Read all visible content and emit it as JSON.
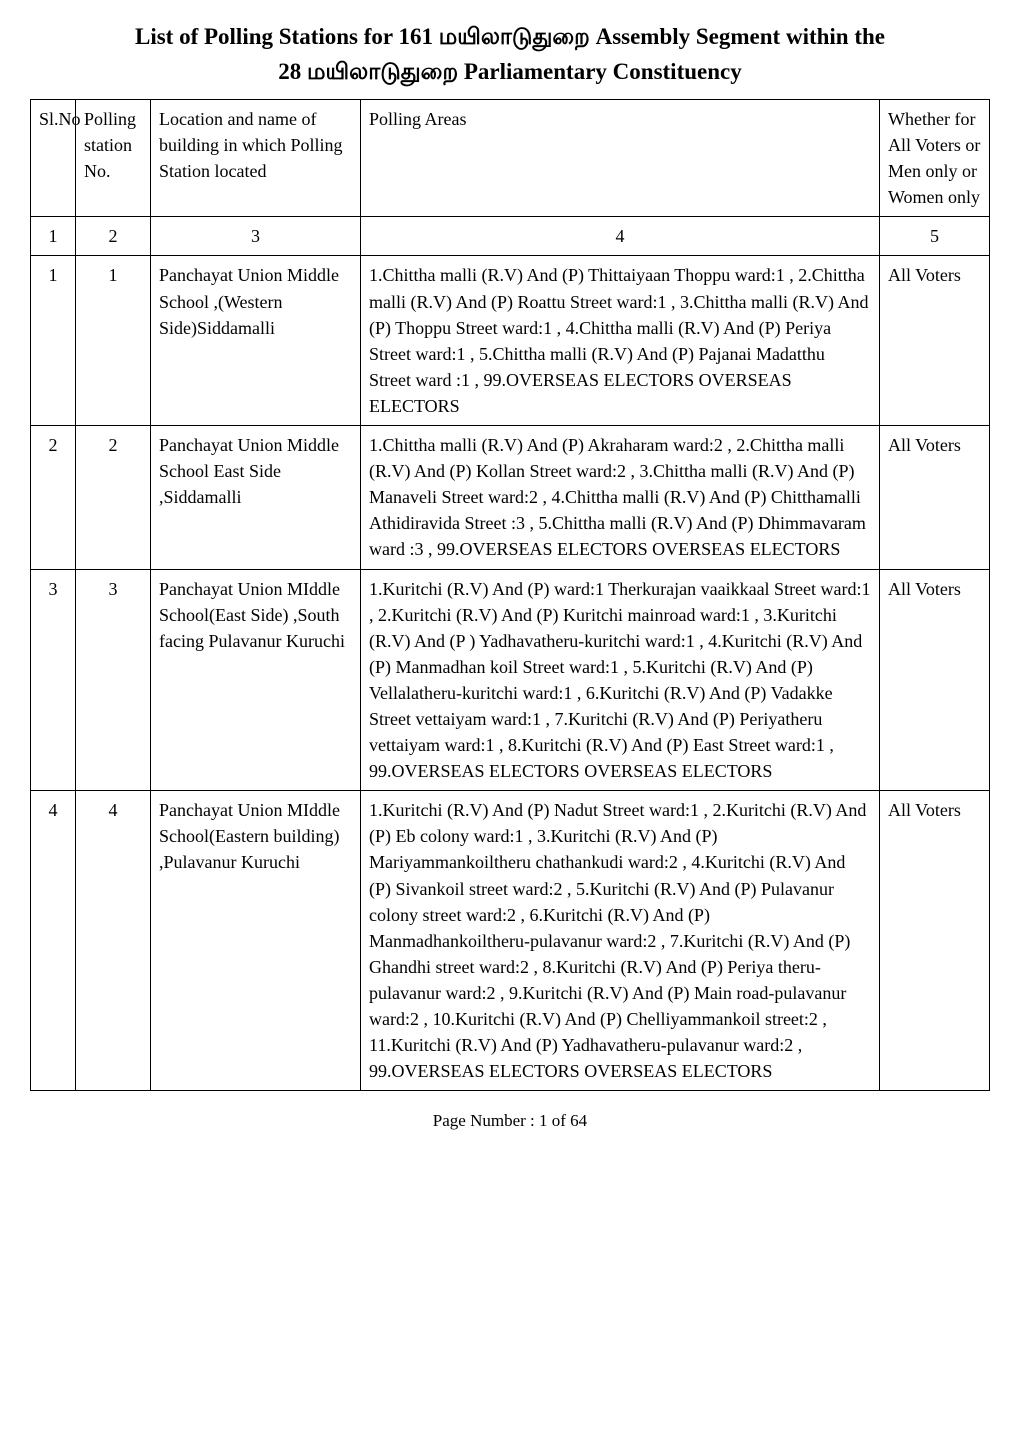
{
  "title": {
    "line1_prefix": "List of Polling Stations for  161  ",
    "line1_tamil": "மயிலாடுதுறை",
    "line1_suffix": "   Assembly Segment within the",
    "line2_prefix": "28  ",
    "line2_tamil": "மயிலாடுதுறை",
    "line2_suffix": "  Parliamentary Constituency"
  },
  "headers": {
    "slno": "Sl.No",
    "polling": "Polling station No.",
    "location": "Location and name of building in which  Polling Station located",
    "areas": "Polling Areas",
    "whether": "Whether for All Voters or Men only or Women only"
  },
  "num_row": {
    "c1": "1",
    "c2": "2",
    "c3": "3",
    "c4": "4",
    "c5": "5"
  },
  "rows": [
    {
      "slno": "1",
      "station": "1",
      "location": "Panchayat Union Middle School ,(Western Side)Siddamalli",
      "areas": "1.Chittha malli (R.V) And (P) Thittaiyaan Thoppu  ward:1 , 2.Chittha malli (R.V) And  (P) Roattu Street ward:1 , 3.Chittha malli  (R.V) And (P) Thoppu Street ward:1 , 4.Chittha malli (R.V) And  (P) Periya Street ward:1 , 5.Chittha malli (R.V) And (P) Pajanai Madatthu Street ward :1 , 99.OVERSEAS ELECTORS OVERSEAS ELECTORS",
      "whether": "All Voters"
    },
    {
      "slno": "2",
      "station": "2",
      "location": "Panchayat Union Middle School East Side  ,Siddamalli",
      "areas": "1.Chittha malli (R.V) And (P) Akraharam  ward:2 , 2.Chittha malli (R.V) And (P) Kollan Street ward:2 , 3.Chittha malli (R.V) And  (P) Manaveli Street ward:2 , 4.Chittha malli (R.V) And (P) Chitthamalli Athidiravida Street :3 , 5.Chittha malli (R.V) And (P) Dhimmavaram ward :3 , 99.OVERSEAS ELECTORS OVERSEAS ELECTORS",
      "whether": "All Voters"
    },
    {
      "slno": "3",
      "station": "3",
      "location": "Panchayat Union MIddle School(East Side)            ,South facing Pulavanur Kuruchi",
      "areas": "1.Kuritchi (R.V) And (P) ward:1 Therkurajan vaaikkaal Street ward:1 , 2.Kuritchi (R.V) And  (P)  Kuritchi mainroad ward:1 , 3.Kuritchi (R.V) And (P ) Yadhavatheru-kuritchi ward:1 , 4.Kuritchi (R.V) And (P) Manmadhan koil Street ward:1 , 5.Kuritchi (R.V) And (P)  Vellalatheru-kuritchi ward:1 , 6.Kuritchi (R.V) And (P) Vadakke Street vettaiyam ward:1 , 7.Kuritchi (R.V) And (P)  Periyatheru vettaiyam ward:1 , 8.Kuritchi (R.V) And (P) East Street ward:1 , 99.OVERSEAS ELECTORS OVERSEAS ELECTORS",
      "whether": "All Voters"
    },
    {
      "slno": "4",
      "station": "4",
      "location": "Panchayat Union MIddle School(Eastern building) ,Pulavanur Kuruchi",
      "areas": "1.Kuritchi (R.V) And (P) Nadut Street ward:1 , 2.Kuritchi (R.V) And (P) Eb colony ward:1 , 3.Kuritchi (R.V) And (P)  Mariyammankoiltheru chathankudi ward:2 , 4.Kuritchi (R.V) And (P)  Sivankoil street ward:2 , 5.Kuritchi (R.V) And (P) Pulavanur colony street ward:2 , 6.Kuritchi (R.V) And (P)  Manmadhankoiltheru-pulavanur ward:2 , 7.Kuritchi (R.V) And (P)  Ghandhi street ward:2 , 8.Kuritchi (R.V) And (P)  Periya theru-pulavanur ward:2 , 9.Kuritchi (R.V) And (P)  Main road-pulavanur ward:2 , 10.Kuritchi (R.V) And (P)  Chelliyammankoil street:2 , 11.Kuritchi (R.V) And (P)  Yadhavatheru-pulavanur ward:2 , 99.OVERSEAS ELECTORS OVERSEAS ELECTORS",
      "whether": "All Voters"
    }
  ],
  "footer": "Page Number : 1 of 64"
}
